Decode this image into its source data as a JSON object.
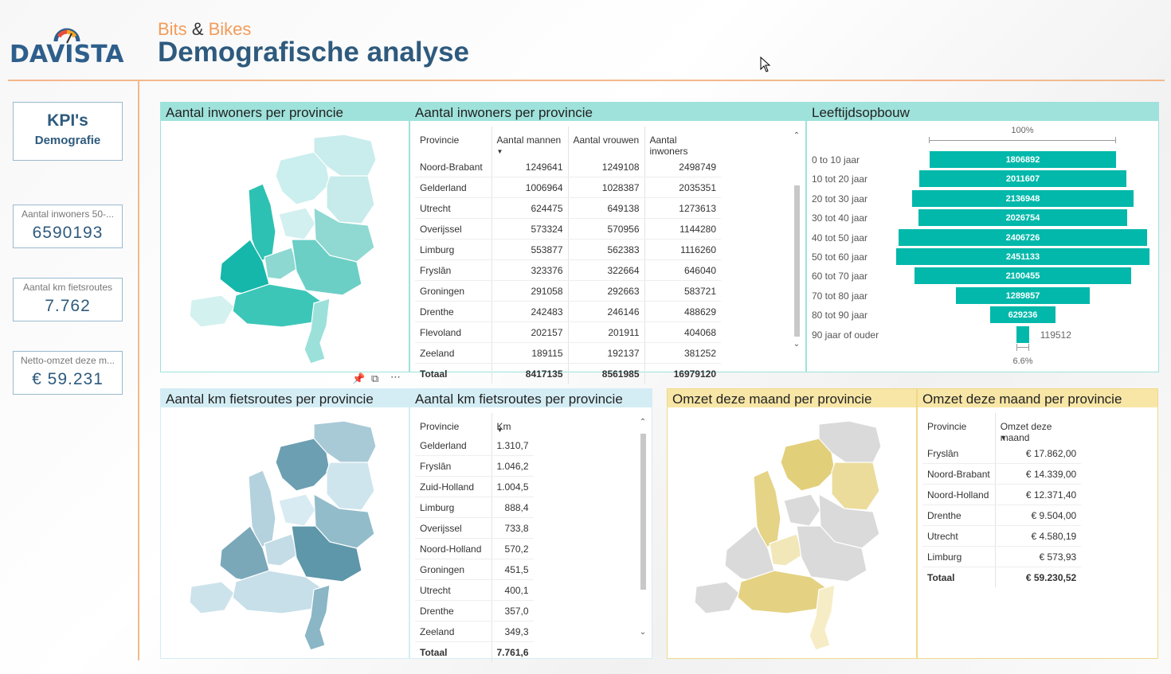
{
  "header": {
    "logo_text": "DAVISTA",
    "brand_left": "Bits",
    "brand_amp": "&",
    "brand_right": "Bikes",
    "title": "Demografische analyse"
  },
  "kpi": {
    "title": "KPI's",
    "subtitle": "Demografie",
    "cards": [
      {
        "label": "Aantal inwoners 50-...",
        "value": "6590193"
      },
      {
        "label": "Aantal km fietsroutes",
        "value": "7.762"
      },
      {
        "label": "Netto-omzet deze m...",
        "value": "€ 59.231"
      }
    ]
  },
  "colors": {
    "teal": "#01b8aa",
    "map_teal_light": "#c9ecec",
    "map_blue": "#5d97a9",
    "map_gold": "#e2cf7a",
    "map_grey": "#dadada",
    "accent_line": "#f5b88a"
  },
  "panels": {
    "inhab_map_title": "Aantal inwoners per provincie",
    "inhab_table_title": "Aantal inwoners per provincie",
    "age_title": "Leeftijdsopbouw",
    "km_map_title": "Aantal km fietsroutes per provincie",
    "km_table_title": "Aantal km fietsroutes per provincie",
    "rev_map_title": "Omzet deze maand per provincie",
    "rev_table_title": "Omzet deze maand per provincie"
  },
  "inhab_table": {
    "columns": [
      "Provincie",
      "Aantal mannen",
      "Aantal vrouwen",
      "Aantal inwoners"
    ],
    "rows": [
      [
        "Noord-Brabant",
        "1249641",
        "1249108",
        "2498749"
      ],
      [
        "Gelderland",
        "1006964",
        "1028387",
        "2035351"
      ],
      [
        "Utrecht",
        "624475",
        "649138",
        "1273613"
      ],
      [
        "Overijssel",
        "573324",
        "570956",
        "1144280"
      ],
      [
        "Limburg",
        "553877",
        "562383",
        "1116260"
      ],
      [
        "Fryslân",
        "323376",
        "322664",
        "646040"
      ],
      [
        "Groningen",
        "291058",
        "292663",
        "583721"
      ],
      [
        "Drenthe",
        "242483",
        "246146",
        "488629"
      ],
      [
        "Flevoland",
        "202157",
        "201911",
        "404068"
      ],
      [
        "Zeeland",
        "189115",
        "192137",
        "381252"
      ]
    ],
    "total": [
      "Totaal",
      "8417135",
      "8561985",
      "16979120"
    ]
  },
  "km_table": {
    "columns": [
      "Provincie",
      "Km"
    ],
    "rows": [
      [
        "Gelderland",
        "1.310,7"
      ],
      [
        "Fryslân",
        "1.046,2"
      ],
      [
        "Zuid-Holland",
        "1.004,5"
      ],
      [
        "Limburg",
        "888,4"
      ],
      [
        "Overijssel",
        "733,8"
      ],
      [
        "Noord-Holland",
        "570,2"
      ],
      [
        "Groningen",
        "451,5"
      ],
      [
        "Utrecht",
        "400,1"
      ],
      [
        "Drenthe",
        "357,0"
      ],
      [
        "Zeeland",
        "349,3"
      ]
    ],
    "total": [
      "Totaal",
      "7.761,6"
    ]
  },
  "rev_table": {
    "columns": [
      "Provincie",
      "Omzet deze maand"
    ],
    "rows": [
      [
        "Fryslân",
        "€ 17.862,00"
      ],
      [
        "Noord-Brabant",
        "€ 14.339,00"
      ],
      [
        "Noord-Holland",
        "€ 12.371,40"
      ],
      [
        "Drenthe",
        "€ 9.504,00"
      ],
      [
        "Utrecht",
        "€ 4.580,19"
      ],
      [
        "Limburg",
        "€ 573,93"
      ]
    ],
    "total": [
      "Totaal",
      "€ 59.230,52"
    ]
  },
  "chart_data": {
    "type": "bar",
    "orientation": "horizontal-funnel",
    "title": "Leeftijdsopbouw",
    "top_label": "100%",
    "bottom_label": "6.6%",
    "categories": [
      "0 to 10 jaar",
      "10 tot 20 jaar",
      "20 tot 30 jaar",
      "30 tot 40 jaar",
      "40 tot 50 jaar",
      "50 tot 60 jaar",
      "60 tot 70 jaar",
      "70 tot 80 jaar",
      "80 tot 90 jaar",
      "90 jaar of ouder"
    ],
    "values": [
      1806892,
      2011607,
      2136948,
      2026754,
      2406726,
      2451133,
      2100455,
      1289857,
      629236,
      119512
    ]
  },
  "toolbar_icons": [
    "pin-icon",
    "focus-mode-icon",
    "more-options-icon"
  ]
}
